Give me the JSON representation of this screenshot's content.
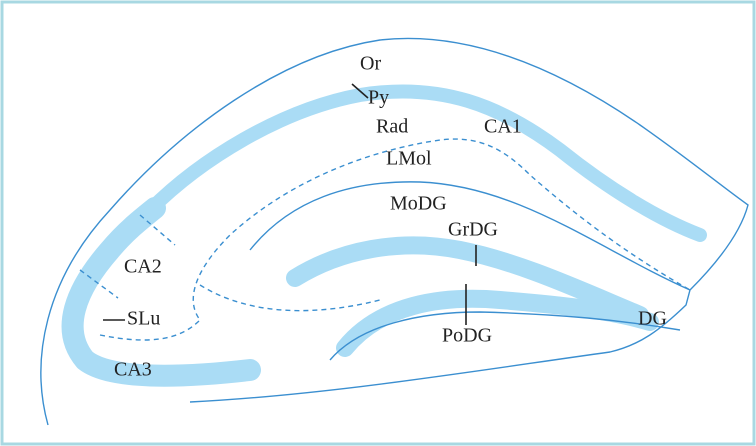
{
  "labels": {
    "or": "Or",
    "py": "Py",
    "rad": "Rad",
    "ca1": "CA1",
    "lmol": "LMol",
    "modg": "MoDG",
    "grdg": "GrDG",
    "ca2": "CA2",
    "slu": "SLu",
    "dg": "DG",
    "podg": "PoDG",
    "ca3": "CA3"
  }
}
